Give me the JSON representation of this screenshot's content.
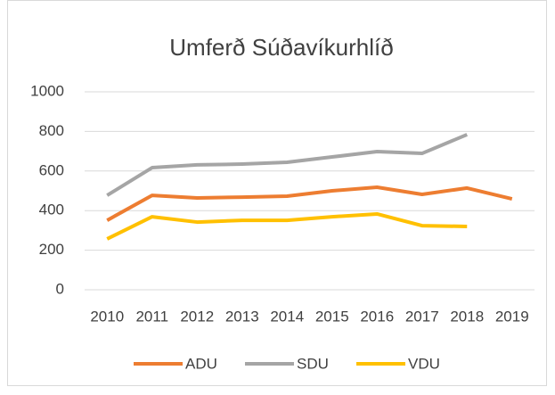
{
  "chart_data": {
    "type": "line",
    "title": "Umferð Súðavíkurhlíð",
    "categories": [
      "2010",
      "2011",
      "2012",
      "2013",
      "2014",
      "2015",
      "2016",
      "2017",
      "2018",
      "2019"
    ],
    "series": [
      {
        "name": "ADU",
        "color": "#ed7d31",
        "values": [
          351,
          477,
          464,
          468,
          473,
          500,
          518,
          482,
          514,
          459
        ]
      },
      {
        "name": "SDU",
        "color": "#a5a5a5",
        "values": [
          477,
          617,
          631,
          635,
          644,
          671,
          698,
          689,
          784,
          null
        ]
      },
      {
        "name": "VDU",
        "color": "#ffc000",
        "values": [
          257,
          369,
          342,
          351,
          351,
          369,
          383,
          324,
          320,
          null
        ]
      }
    ],
    "ylim": [
      0,
      1000
    ],
    "yticks": [
      0,
      200,
      400,
      600,
      800,
      1000
    ],
    "grid": true,
    "legend": "bottom"
  }
}
